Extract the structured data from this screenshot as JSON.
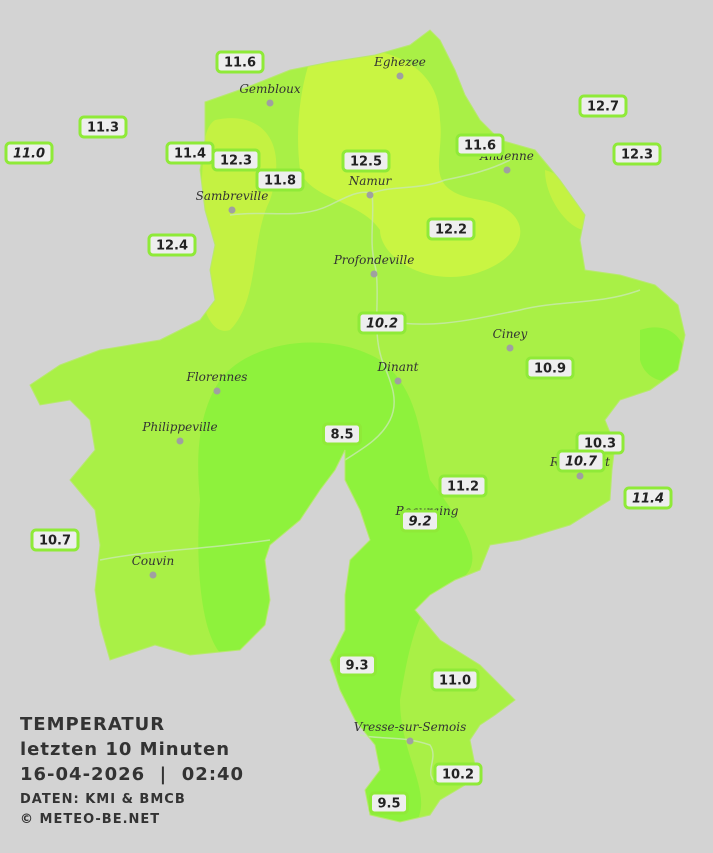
{
  "title": {
    "heading": "TEMPERATUR",
    "subtitle": "letzten 10 Minuten",
    "datetime": "16-04-2026  |  02:40",
    "source": "DATEN: KMI & BMCB",
    "copyright": "© METEO-BE.NET"
  },
  "cities": [
    "Eghezee",
    "Gembloux",
    "Andenne",
    "Namur",
    "Sambreville",
    "Profondeville",
    "Ciney",
    "Dinant",
    "Florennes",
    "Philippeville",
    "Rochefort",
    "Beauraing",
    "Couvin",
    "Vresse-sur-Semois"
  ],
  "stations": [
    {
      "label": "11.6"
    },
    {
      "label": "11.3"
    },
    {
      "label": "11.0",
      "italic": true
    },
    {
      "label": "11.4"
    },
    {
      "label": "12.3"
    },
    {
      "label": "11.8"
    },
    {
      "label": "12.5"
    },
    {
      "label": "11.6"
    },
    {
      "label": "12.7"
    },
    {
      "label": "12.3"
    },
    {
      "label": "12.4"
    },
    {
      "label": "12.2"
    },
    {
      "label": "10.2",
      "italic": true
    },
    {
      "label": "10.9"
    },
    {
      "label": "8.5"
    },
    {
      "label": "10.3"
    },
    {
      "label": "10.7",
      "italic": true
    },
    {
      "label": "11.2"
    },
    {
      "label": "11.4",
      "italic": true
    },
    {
      "label": "9.2",
      "italic": true
    },
    {
      "label": "10.7"
    },
    {
      "label": "9.3"
    },
    {
      "label": "11.0"
    },
    {
      "label": "10.2"
    },
    {
      "label": "9.5"
    }
  ]
}
